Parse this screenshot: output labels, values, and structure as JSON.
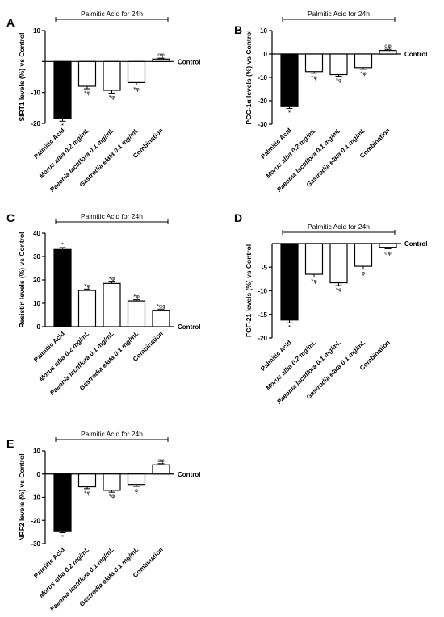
{
  "treatment_label": "Palmitic Acid for 24h",
  "control_label": "Control",
  "colors": {
    "treated": "#000000",
    "herbal": "#ffffff",
    "outline": "#000000"
  },
  "chart_data": [
    {
      "panel": "A",
      "type": "bar",
      "ylabel": "SIRT1 levels (%) vs Control",
      "categories": [
        "Palmitic Acid",
        "Morus alba 0.2 mg/mL",
        "Paeonia lactiflora 0.1 mg/mL",
        "Gastrodia elata 0.1 mg/mL",
        "Combination"
      ],
      "values": [
        -18.5,
        -8,
        -9.3,
        -6.8,
        0.8
      ],
      "errors": [
        0.8,
        0.8,
        0.9,
        0.8,
        0.3
      ],
      "annotations": [
        "*",
        "*φ",
        "*φ",
        "*φ",
        "αφ"
      ],
      "ylim": [
        -20,
        10
      ],
      "yticks": [
        -20,
        -10,
        0,
        10
      ],
      "ytick_labels": [
        "-20",
        "-10",
        "",
        "10"
      ]
    },
    {
      "panel": "B",
      "type": "bar",
      "ylabel": "PGC-1α levels (%) vs Control",
      "categories": [
        "Palmitic Acid",
        "Morus alba 0.2 mg/mL",
        "Paeonia lactiflora 0.1 mg/mL",
        "Gastrodia elata 0.1 mg/mL",
        "Combination"
      ],
      "values": [
        -22.5,
        -7.5,
        -8.8,
        -5.8,
        1.5
      ],
      "errors": [
        0.8,
        0.7,
        0.7,
        0.7,
        0.5
      ],
      "annotations": [
        "*",
        "*φ",
        "*φ",
        "*φ",
        "αφ"
      ],
      "ylim": [
        -30,
        10
      ],
      "yticks": [
        -30,
        -20,
        -10,
        0,
        10
      ],
      "ytick_labels": [
        "-30",
        "-20",
        "-10",
        "0",
        "10"
      ]
    },
    {
      "panel": "C",
      "type": "bar",
      "ylabel": "Resistin levels (%) vs Control",
      "categories": [
        "Palmitic Acid",
        "Morus alba 0.2 mg/mL",
        "Paeonia lactiflora 0.1 mg/mL",
        "Gastrodia elata 0.1 mg/mL",
        "Combination"
      ],
      "values": [
        33,
        15.5,
        18.5,
        11,
        7
      ],
      "errors": [
        0.8,
        0.6,
        0.6,
        0.5,
        0.5
      ],
      "annotations": [
        "*",
        "*φ",
        "*φ",
        "*φ",
        "*αφ"
      ],
      "ylim": [
        0,
        40
      ],
      "yticks": [
        0,
        10,
        20,
        30,
        40
      ],
      "ytick_labels": [
        "0",
        "10",
        "20",
        "30",
        "40"
      ]
    },
    {
      "panel": "D",
      "type": "bar",
      "ylabel": "FGF-21 levels (%) vs Control",
      "categories": [
        "Palmitic Acid",
        "Morus alba 0.2 mg/mL",
        "Paeonia lactiflora 0.1 mg/mL",
        "Gastrodia elata 0.1 mg/mL",
        "Combination"
      ],
      "values": [
        -16.2,
        -6.5,
        -8.3,
        -4.8,
        -0.8
      ],
      "errors": [
        0.6,
        0.6,
        0.6,
        0.6,
        0.3
      ],
      "annotations": [
        "*",
        "*φ",
        "*φ",
        "φ",
        "αφ"
      ],
      "ylim": [
        -20,
        0
      ],
      "yticks": [
        -20,
        -15,
        -10,
        -5
      ],
      "ytick_labels": [
        "-20",
        "-15",
        "-10",
        "-5"
      ]
    },
    {
      "panel": "E",
      "type": "bar",
      "ylabel": "NRF2 levels (%) vs Control",
      "categories": [
        "Palmitic Acid",
        "Morus alba 0.2 mg/mL",
        "Paeonia lactiflora 0.1 mg/mL",
        "Gastrodia elata 0.1 mg/mL",
        "Combination"
      ],
      "values": [
        -24.5,
        -5.5,
        -7,
        -4.5,
        4
      ],
      "errors": [
        0.8,
        0.8,
        0.8,
        0.8,
        0.5
      ],
      "annotations": [
        "*",
        "*φ",
        "*φ",
        "φ",
        "αφ"
      ],
      "ylim": [
        -30,
        10
      ],
      "yticks": [
        -30,
        -20,
        -10,
        0,
        10
      ],
      "ytick_labels": [
        "-30",
        "-20",
        "-10",
        "0",
        "10"
      ]
    }
  ]
}
